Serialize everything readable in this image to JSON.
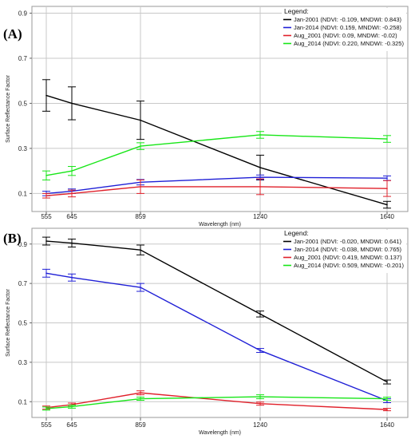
{
  "chart_data": [
    {
      "type": "line",
      "panel_label": "(A)",
      "x": [
        555,
        645,
        859,
        1240,
        1640
      ],
      "x_tick_labels": [
        "555",
        "645",
        "859",
        "1240",
        "1640"
      ],
      "xlabel": "Wavelength (nm)",
      "ylabel": "Surface Reflectance Factor",
      "ylim": [
        0.02,
        0.93
      ],
      "y_ticks": [
        0.1,
        0.3,
        0.5,
        0.7,
        0.9
      ],
      "y_tick_labels": [
        "0.1",
        "0.3",
        "0.5",
        "0.7",
        "0.9"
      ],
      "grid": true,
      "legend_title": "Legend:",
      "legend_position": "top-right",
      "series": [
        {
          "name": "Jan-2001 (NDVI: -0.109, MNDWI: 0.843)",
          "color": "#000000",
          "values": [
            0.535,
            0.5,
            0.425,
            0.215,
            0.05
          ],
          "errors": [
            0.07,
            0.073,
            0.085,
            0.055,
            0.015
          ]
        },
        {
          "name": "Jan-2014 (NDVI: 0.159, MNDWI: -0.258)",
          "color": "#1f1fd6",
          "values": [
            0.1,
            0.11,
            0.15,
            0.172,
            0.168
          ],
          "errors": [
            0.01,
            0.01,
            0.012,
            0.01,
            0.01
          ]
        },
        {
          "name": "Aug_2001 (NDVI: 0.09, MNDWI: -0.02)",
          "color": "#e0202a",
          "values": [
            0.09,
            0.1,
            0.13,
            0.13,
            0.122
          ],
          "errors": [
            0.01,
            0.015,
            0.03,
            0.035,
            0.035
          ]
        },
        {
          "name": "Aug_2014 (NDVI: 0.220, MNDWI: -0.325)",
          "color": "#17e617",
          "values": [
            0.18,
            0.2,
            0.31,
            0.36,
            0.342
          ],
          "errors": [
            0.02,
            0.02,
            0.015,
            0.015,
            0.015
          ]
        }
      ]
    },
    {
      "type": "line",
      "panel_label": "(B)",
      "x": [
        555,
        645,
        859,
        1240,
        1640
      ],
      "x_tick_labels": [
        "555",
        "645",
        "859",
        "1240",
        "1640"
      ],
      "xlabel": "Wavelength (nm)",
      "ylabel": "Surface Reflectance Factor",
      "ylim": [
        0.02,
        0.98
      ],
      "y_ticks": [
        0.1,
        0.3,
        0.5,
        0.7,
        0.9
      ],
      "y_tick_labels": [
        "0.1",
        "0.3",
        "0.5",
        "0.7",
        "0.9"
      ],
      "grid": true,
      "legend_title": "Legend:",
      "legend_position": "top-right",
      "series": [
        {
          "name": "Jan-2001 (NDVI: -0.020, MNDWI: 0.641)",
          "color": "#000000",
          "values": [
            0.915,
            0.905,
            0.87,
            0.545,
            0.2
          ],
          "errors": [
            0.02,
            0.02,
            0.025,
            0.015,
            0.01
          ]
        },
        {
          "name": "Jan-2014 (NDVI: -0.038, MNDWI: 0.765)",
          "color": "#1f1fd6",
          "values": [
            0.752,
            0.73,
            0.68,
            0.36,
            0.105
          ],
          "errors": [
            0.02,
            0.018,
            0.02,
            0.01,
            0.01
          ]
        },
        {
          "name": "Aug_2001 (NDVI: 0.419, MNDWI: 0.137)",
          "color": "#e0202a",
          "values": [
            0.07,
            0.085,
            0.145,
            0.09,
            0.06
          ],
          "errors": [
            0.008,
            0.008,
            0.01,
            0.008,
            0.006
          ]
        },
        {
          "name": "Aug_2014 (NDVI: 0.509, MNDWI: -0.201)",
          "color": "#17e617",
          "values": [
            0.065,
            0.075,
            0.115,
            0.125,
            0.115
          ],
          "errors": [
            0.008,
            0.008,
            0.008,
            0.01,
            0.008
          ]
        }
      ]
    }
  ]
}
